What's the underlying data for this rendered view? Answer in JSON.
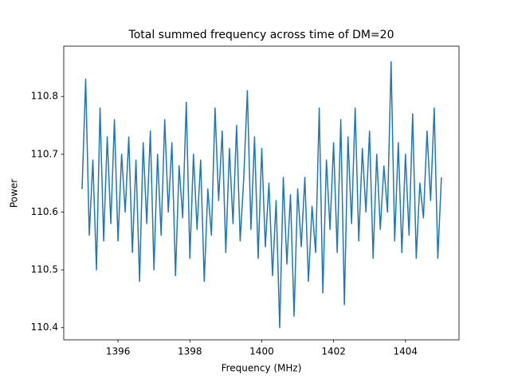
{
  "chart_data": {
    "type": "line",
    "title": "Total summed frequency across time of DM=20",
    "x_label": "Frequency (MHz)",
    "y_label": "Power",
    "color": "#1f77b4",
    "xlim": [
      1394.49,
      1405.49
    ],
    "ylim": [
      110.379,
      110.887
    ],
    "xticks": [
      1396,
      1398,
      1400,
      1402,
      1404
    ],
    "yticks": [
      110.4,
      110.5,
      110.6,
      110.7,
      110.8
    ],
    "x": [
      1395.0,
      1395.1,
      1395.2,
      1395.3,
      1395.4,
      1395.5,
      1395.6,
      1395.7,
      1395.8,
      1395.9,
      1396.0,
      1396.1,
      1396.2,
      1396.3,
      1396.4,
      1396.5,
      1396.6,
      1396.7,
      1396.8,
      1396.9,
      1397.0,
      1397.1,
      1397.2,
      1397.3,
      1397.4,
      1397.5,
      1397.6,
      1397.7,
      1397.8,
      1397.9,
      1398.0,
      1398.1,
      1398.2,
      1398.3,
      1398.4,
      1398.5,
      1398.6,
      1398.7,
      1398.8,
      1398.9,
      1399.0,
      1399.1,
      1399.2,
      1399.3,
      1399.4,
      1399.5,
      1399.6,
      1399.7,
      1399.8,
      1399.9,
      1400.0,
      1400.1,
      1400.2,
      1400.3,
      1400.4,
      1400.5,
      1400.6,
      1400.7,
      1400.8,
      1400.9,
      1401.0,
      1401.1,
      1401.2,
      1401.3,
      1401.4,
      1401.5,
      1401.6,
      1401.7,
      1401.8,
      1401.9,
      1402.0,
      1402.1,
      1402.2,
      1402.3,
      1402.4,
      1402.5,
      1402.6,
      1402.7,
      1402.8,
      1402.9,
      1403.0,
      1403.1,
      1403.2,
      1403.3,
      1403.4,
      1403.5,
      1403.6,
      1403.7,
      1403.8,
      1403.9,
      1404.0,
      1404.1,
      1404.2,
      1404.3,
      1404.4,
      1404.5,
      1404.6,
      1404.7,
      1404.8,
      1404.9,
      1405.0
    ],
    "values": [
      110.64,
      110.83,
      110.56,
      110.69,
      110.5,
      110.78,
      110.55,
      110.73,
      110.58,
      110.76,
      110.55,
      110.7,
      110.6,
      110.73,
      110.53,
      110.69,
      110.48,
      110.72,
      110.58,
      110.74,
      110.5,
      110.7,
      110.56,
      110.76,
      110.6,
      110.72,
      110.49,
      110.68,
      110.59,
      110.79,
      110.52,
      110.7,
      110.57,
      110.69,
      110.48,
      110.64,
      110.56,
      110.78,
      110.62,
      110.74,
      110.53,
      110.71,
      110.58,
      110.75,
      110.55,
      110.66,
      110.81,
      110.57,
      110.73,
      110.52,
      110.71,
      110.54,
      110.65,
      110.49,
      110.62,
      110.4,
      110.66,
      110.51,
      110.63,
      110.42,
      110.64,
      110.54,
      110.66,
      110.48,
      110.61,
      110.53,
      110.78,
      110.46,
      110.69,
      110.57,
      110.72,
      110.53,
      110.76,
      110.44,
      110.73,
      110.58,
      110.78,
      110.55,
      110.71,
      110.6,
      110.74,
      110.52,
      110.7,
      110.57,
      110.68,
      110.6,
      110.86,
      110.55,
      110.72,
      110.53,
      110.7,
      110.56,
      110.77,
      110.52,
      110.65,
      110.59,
      110.74,
      110.62,
      110.78,
      110.52,
      110.66
    ]
  }
}
